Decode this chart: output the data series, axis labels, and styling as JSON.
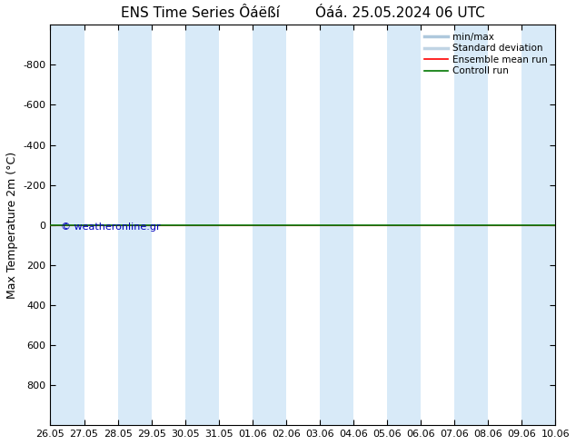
{
  "title": "ENS Time Series Ôáëßí        Óáá. 25.05.2024 06 UTC",
  "ylabel": "Max Temperature 2m (°C)",
  "ylim": [
    -1000,
    1000
  ],
  "yticks": [
    -800,
    -600,
    -400,
    -200,
    0,
    200,
    400,
    600,
    800
  ],
  "xtick_labels": [
    "26.05",
    "27.05",
    "28.05",
    "29.05",
    "30.05",
    "31.05",
    "01.06",
    "02.06",
    "03.06",
    "04.06",
    "05.06",
    "06.06",
    "07.06",
    "08.06",
    "09.06",
    "10.06"
  ],
  "xtick_positions": [
    0,
    1,
    2,
    3,
    4,
    5,
    6,
    7,
    8,
    9,
    10,
    11,
    12,
    13,
    14,
    15
  ],
  "x_range": [
    0,
    15
  ],
  "ensemble_mean_color": "#ff0000",
  "control_run_color": "#007700",
  "minmax_fill_color": "#d8eaf8",
  "background_color": "#ffffff",
  "plot_bg_color": "#ffffff",
  "watermark": "© weatheronline.gr",
  "legend_labels": [
    "min/max",
    "Standard deviation",
    "Ensemble mean run",
    "Controll run"
  ],
  "legend_minmax_color": "#aec8dc",
  "legend_stddev_color": "#c0d4e4",
  "title_fontsize": 11,
  "axis_fontsize": 9,
  "tick_fontsize": 8,
  "num_columns": 16,
  "shaded_even": true
}
